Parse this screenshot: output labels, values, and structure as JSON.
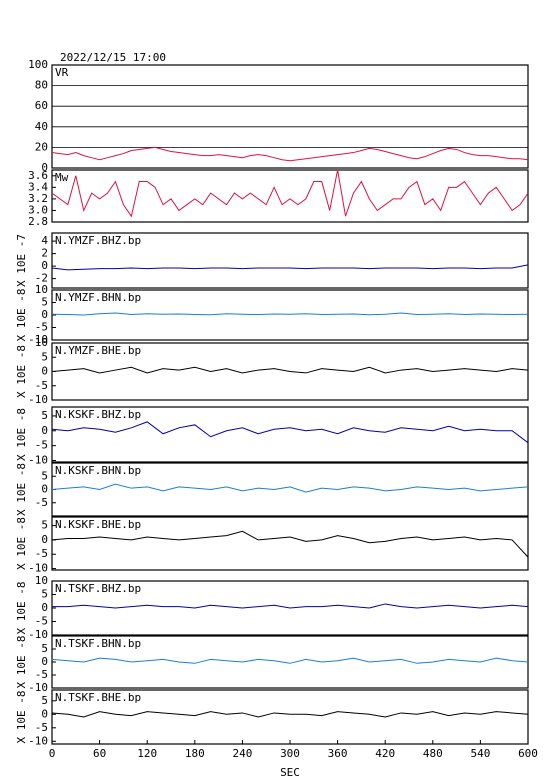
{
  "chart_data": [
    {
      "type": "line",
      "title": "2022/12/15 17:00",
      "label": "VR",
      "color": "#dc143c",
      "grid": true,
      "xlim": [
        0,
        600
      ],
      "ylim": [
        0,
        100
      ],
      "yticks": [
        0,
        20,
        40,
        60,
        80,
        100
      ],
      "x": [
        0,
        10,
        20,
        30,
        40,
        50,
        60,
        70,
        80,
        90,
        100,
        110,
        120,
        130,
        140,
        150,
        160,
        170,
        180,
        190,
        200,
        210,
        220,
        230,
        240,
        250,
        260,
        270,
        280,
        290,
        300,
        310,
        320,
        330,
        340,
        350,
        360,
        370,
        380,
        390,
        400,
        410,
        420,
        430,
        440,
        450,
        460,
        470,
        480,
        490,
        500,
        510,
        520,
        530,
        540,
        550,
        560,
        570,
        580,
        590,
        600
      ],
      "values": [
        15,
        14,
        13,
        15,
        12,
        10,
        8,
        10,
        12,
        14,
        17,
        18,
        19,
        20,
        18,
        16,
        15,
        14,
        13,
        12,
        12,
        13,
        12,
        11,
        10,
        12,
        13,
        12,
        10,
        8,
        7,
        8,
        9,
        10,
        11,
        12,
        13,
        14,
        15,
        17,
        19,
        18,
        16,
        14,
        12,
        10,
        9,
        11,
        14,
        17,
        19,
        18,
        15,
        13,
        12,
        12,
        11,
        10,
        9,
        9,
        8
      ]
    },
    {
      "type": "line",
      "label": "Mw",
      "color": "#dc143c",
      "grid": false,
      "xlim": [
        0,
        600
      ],
      "ylim": [
        2.8,
        3.7
      ],
      "yticks": [
        2.8,
        {
          "value": 3,
          "label": "3.0"
        },
        3.2,
        3.4,
        3.6
      ],
      "x": [
        0,
        10,
        20,
        30,
        40,
        50,
        60,
        70,
        80,
        90,
        100,
        110,
        120,
        130,
        140,
        150,
        160,
        170,
        180,
        190,
        200,
        210,
        220,
        230,
        240,
        250,
        260,
        270,
        280,
        290,
        300,
        310,
        320,
        330,
        340,
        350,
        360,
        370,
        380,
        390,
        400,
        410,
        420,
        430,
        440,
        450,
        460,
        470,
        480,
        490,
        500,
        510,
        520,
        530,
        540,
        550,
        560,
        570,
        580,
        590,
        600
      ],
      "values": [
        3.3,
        3.2,
        3.1,
        3.6,
        3,
        3.3,
        3.2,
        3.3,
        3.5,
        3.1,
        2.9,
        3.5,
        3.5,
        3.4,
        3.1,
        3.2,
        3,
        3.1,
        3.2,
        3.1,
        3.3,
        3.2,
        3.1,
        3.3,
        3.2,
        3.3,
        3.2,
        3.1,
        3.4,
        3.1,
        3.2,
        3.1,
        3.2,
        3.5,
        3.5,
        3,
        3.7,
        2.9,
        3.3,
        3.5,
        3.2,
        3,
        3.1,
        3.2,
        3.2,
        3.4,
        3.5,
        3.1,
        3.2,
        3,
        3.4,
        3.4,
        3.5,
        3.3,
        3.1,
        3.3,
        3.4,
        3.2,
        3,
        3.1,
        3.3
      ]
    },
    {
      "type": "line",
      "label": "N.YMZF.BHZ.bp",
      "ylabel": "X 10E -7",
      "color": "#0000aa",
      "xlim": [
        0,
        600
      ],
      "ylim": [
        -3.5,
        5.3
      ],
      "yticks": [
        -2,
        0,
        2,
        4
      ],
      "x": [
        0,
        20,
        40,
        60,
        80,
        100,
        120,
        140,
        160,
        180,
        200,
        220,
        240,
        260,
        280,
        300,
        320,
        340,
        360,
        380,
        400,
        420,
        440,
        460,
        480,
        500,
        520,
        540,
        560,
        580,
        600
      ],
      "values": [
        -0.3,
        -0.6,
        -0.5,
        -0.4,
        -0.4,
        -0.3,
        -0.4,
        -0.3,
        -0.3,
        -0.4,
        -0.3,
        -0.3,
        -0.4,
        -0.3,
        -0.3,
        -0.3,
        -0.4,
        -0.3,
        -0.3,
        -0.3,
        -0.4,
        -0.3,
        -0.3,
        -0.3,
        -0.4,
        -0.3,
        -0.3,
        -0.4,
        -0.3,
        -0.3,
        0.2
      ]
    },
    {
      "type": "line",
      "label": "N.YMZF.BHN.bp",
      "ylabel": "X 10E -8",
      "color": "#1a7fd0",
      "xlim": [
        0,
        600
      ],
      "ylim": [
        -10,
        10
      ],
      "yticks": [
        -10,
        -5,
        0,
        5,
        10
      ],
      "x": [
        0,
        20,
        40,
        60,
        80,
        100,
        120,
        140,
        160,
        180,
        200,
        220,
        240,
        260,
        280,
        300,
        320,
        340,
        360,
        380,
        400,
        420,
        440,
        460,
        480,
        500,
        520,
        540,
        560,
        580,
        600
      ],
      "values": [
        0.3,
        0.2,
        0,
        0.5,
        0.8,
        0.2,
        0.5,
        0.3,
        0.4,
        0.2,
        0.1,
        0.5,
        0.3,
        0.2,
        0.4,
        0.3,
        0.5,
        0.2,
        0.3,
        0.4,
        0.1,
        0.3,
        0.8,
        0.2,
        0.3,
        0.5,
        0.2,
        0.4,
        0.3,
        0.2,
        0.3
      ]
    },
    {
      "type": "line",
      "label": "N.YMZF.BHE.bp",
      "ylabel": "X 10E -8",
      "color": "#000000",
      "xlim": [
        0,
        600
      ],
      "ylim": [
        -10,
        10
      ],
      "yticks": [
        -10,
        -5,
        0,
        5,
        10
      ],
      "x": [
        0,
        20,
        40,
        60,
        80,
        100,
        120,
        140,
        160,
        180,
        200,
        220,
        240,
        260,
        280,
        300,
        320,
        340,
        360,
        380,
        400,
        420,
        440,
        460,
        480,
        500,
        520,
        540,
        560,
        580,
        600
      ],
      "values": [
        0,
        0.5,
        1,
        -0.5,
        0.5,
        1.5,
        -0.5,
        1,
        0.5,
        1.5,
        0,
        1,
        -0.5,
        0.5,
        1,
        0,
        -0.5,
        1,
        0.5,
        0,
        1.5,
        -0.5,
        0.5,
        1,
        0,
        0.5,
        1,
        0.5,
        0,
        1,
        0.5
      ]
    },
    {
      "type": "line",
      "label": "N.KSKF.BHZ.bp",
      "ylabel": "X 10E -8",
      "color": "#0000aa",
      "xlim": [
        0,
        600
      ],
      "ylim": [
        -10.5,
        8
      ],
      "yticks": [
        -10,
        -5,
        0,
        5
      ],
      "x": [
        0,
        20,
        40,
        60,
        80,
        100,
        120,
        140,
        160,
        180,
        200,
        220,
        240,
        260,
        280,
        300,
        320,
        340,
        360,
        380,
        400,
        420,
        440,
        460,
        480,
        500,
        520,
        540,
        560,
        580,
        600
      ],
      "values": [
        0.5,
        0,
        1,
        0.5,
        -0.5,
        1,
        3,
        -1,
        1,
        2,
        -2,
        0,
        1,
        -1,
        0.5,
        1,
        0,
        0.5,
        -1,
        1,
        0,
        -0.5,
        1,
        0.5,
        0,
        1.5,
        0,
        0.5,
        0,
        0,
        -4
      ]
    },
    {
      "type": "line",
      "label": "N.KSKF.BHN.bp",
      "ylabel": "X 10E -8",
      "color": "#1a7fd0",
      "xlim": [
        0,
        600
      ],
      "ylim": [
        -10,
        10
      ],
      "yticks": [
        -5,
        0,
        5
      ],
      "x": [
        0,
        20,
        40,
        60,
        80,
        100,
        120,
        140,
        160,
        180,
        200,
        220,
        240,
        260,
        280,
        300,
        320,
        340,
        360,
        380,
        400,
        420,
        440,
        460,
        480,
        500,
        520,
        540,
        560,
        580,
        600
      ],
      "values": [
        0,
        0.5,
        1,
        0,
        2,
        0.5,
        1,
        -0.5,
        1,
        0.5,
        0,
        1,
        -0.5,
        0.5,
        0,
        1,
        -1,
        0.5,
        0,
        1,
        0.5,
        -0.5,
        0,
        1,
        0.5,
        0,
        0.5,
        -0.5,
        0,
        0.5,
        1
      ]
    },
    {
      "type": "line",
      "label": "N.KSKF.BHE.bp",
      "ylabel": "X 10E -8",
      "color": "#000000",
      "xlim": [
        0,
        600
      ],
      "ylim": [
        -10.5,
        8
      ],
      "yticks": [
        -10,
        -5,
        0,
        5
      ],
      "x": [
        0,
        20,
        40,
        60,
        80,
        100,
        120,
        140,
        160,
        180,
        200,
        220,
        240,
        260,
        280,
        300,
        320,
        340,
        360,
        380,
        400,
        420,
        440,
        460,
        480,
        500,
        520,
        540,
        560,
        580,
        600
      ],
      "values": [
        0,
        0.5,
        0.5,
        1,
        0.5,
        0,
        1,
        0.5,
        0,
        0.5,
        1,
        1.5,
        3,
        0,
        0.5,
        1,
        -0.5,
        0,
        1.5,
        0.5,
        -1,
        -0.5,
        0.5,
        1,
        0,
        0.5,
        1,
        0,
        0.5,
        0,
        -6
      ]
    },
    {
      "type": "line",
      "label": "N.TSKF.BHZ.bp",
      "ylabel": "X 10E -8",
      "color": "#0000aa",
      "xlim": [
        0,
        600
      ],
      "ylim": [
        -10,
        10
      ],
      "yticks": [
        -10,
        -5,
        0,
        5,
        10
      ],
      "x": [
        0,
        20,
        40,
        60,
        80,
        100,
        120,
        140,
        160,
        180,
        200,
        220,
        240,
        260,
        280,
        300,
        320,
        340,
        360,
        380,
        400,
        420,
        440,
        460,
        480,
        500,
        520,
        540,
        560,
        580,
        600
      ],
      "values": [
        0.5,
        0.5,
        1,
        0.5,
        0,
        0.5,
        1,
        0.5,
        0.5,
        0,
        1,
        0.5,
        0,
        0.5,
        1,
        0,
        0.5,
        0.5,
        1,
        0.5,
        0,
        1.5,
        0.5,
        0,
        0.5,
        1,
        0.5,
        0,
        0.5,
        1,
        0.5
      ]
    },
    {
      "type": "line",
      "label": "N.TSKF.BHN.bp",
      "ylabel": "X 10E -8",
      "color": "#1a7fd0",
      "xlim": [
        0,
        600
      ],
      "ylim": [
        -10,
        10
      ],
      "yticks": [
        -10,
        -5,
        0,
        5
      ],
      "x": [
        0,
        20,
        40,
        60,
        80,
        100,
        120,
        140,
        160,
        180,
        200,
        220,
        240,
        260,
        280,
        300,
        320,
        340,
        360,
        380,
        400,
        420,
        440,
        460,
        480,
        500,
        520,
        540,
        560,
        580,
        600
      ],
      "values": [
        1,
        0.5,
        0,
        1.5,
        1,
        0,
        0.5,
        1,
        0,
        -0.5,
        1,
        0.5,
        0,
        1,
        0.5,
        -0.5,
        1,
        0,
        0.5,
        1.5,
        0,
        0.5,
        1,
        -0.5,
        0,
        1,
        0.5,
        0,
        1.5,
        0.5,
        0
      ]
    },
    {
      "type": "line",
      "label": "N.TSKF.BHE.bp",
      "ylabel": "X 10E -8",
      "color": "#000000",
      "xlabel": "SEC",
      "xlim": [
        0,
        600
      ],
      "ylim": [
        -11,
        9
      ],
      "yticks": [
        -10,
        -5,
        0,
        5
      ],
      "xticks": [
        0,
        60,
        120,
        180,
        240,
        300,
        360,
        420,
        480,
        540,
        600
      ],
      "x": [
        0,
        20,
        40,
        60,
        80,
        100,
        120,
        140,
        160,
        180,
        200,
        220,
        240,
        260,
        280,
        300,
        320,
        340,
        360,
        380,
        400,
        420,
        440,
        460,
        480,
        500,
        520,
        540,
        560,
        580,
        600
      ],
      "values": [
        0.5,
        0,
        -1,
        1,
        0,
        -0.5,
        1,
        0.5,
        0,
        -0.5,
        1,
        0,
        0.5,
        -1,
        0.5,
        0,
        0,
        -0.5,
        1,
        0.5,
        0,
        -1,
        0.5,
        0,
        1,
        -0.5,
        0.5,
        0,
        1,
        0.5,
        0
      ]
    }
  ]
}
